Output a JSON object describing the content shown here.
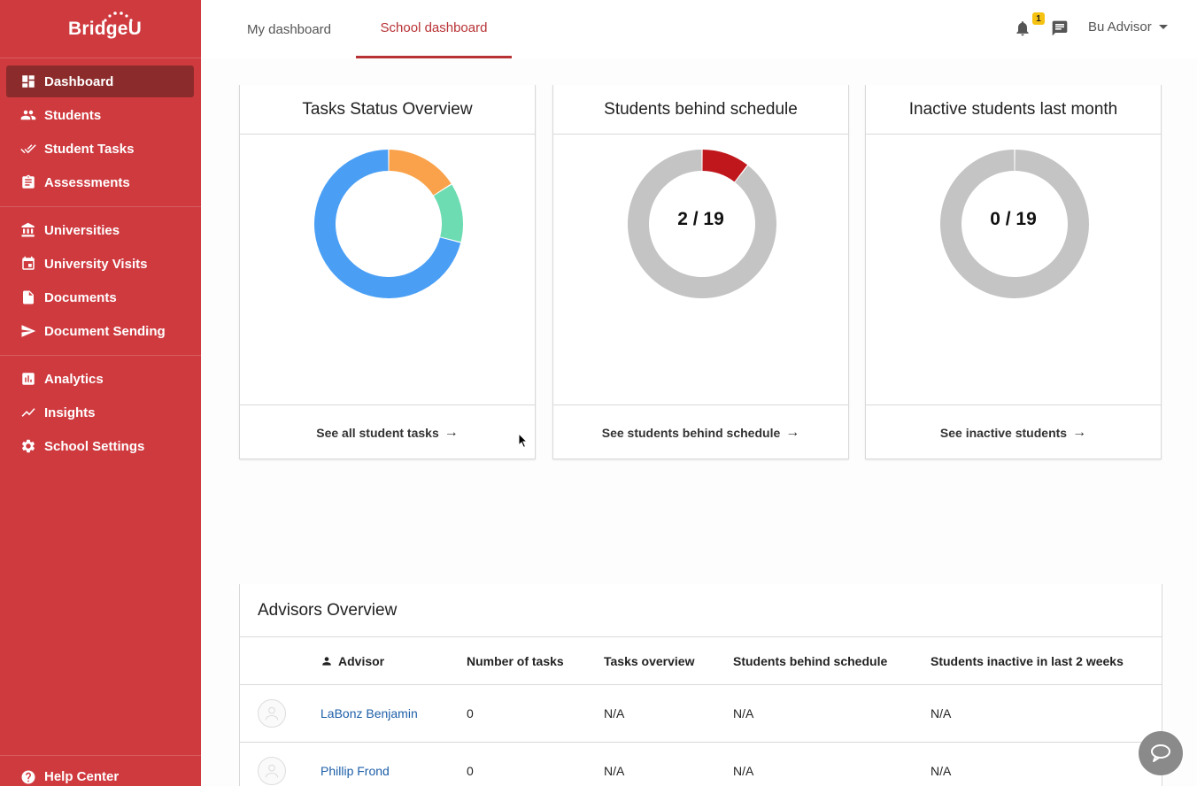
{
  "brand": {
    "name": "BridgeU"
  },
  "sidebar": {
    "groups": [
      [
        {
          "label": "Dashboard",
          "icon": "dashboard-icon",
          "active": true
        },
        {
          "label": "Students",
          "icon": "people-icon"
        },
        {
          "label": "Student Tasks",
          "icon": "double-check-icon"
        },
        {
          "label": "Assessments",
          "icon": "clipboard-icon"
        }
      ],
      [
        {
          "label": "Universities",
          "icon": "university-icon"
        },
        {
          "label": "University Visits",
          "icon": "calendar-icon"
        },
        {
          "label": "Documents",
          "icon": "document-icon"
        },
        {
          "label": "Document Sending",
          "icon": "send-icon"
        }
      ],
      [
        {
          "label": "Analytics",
          "icon": "bar-chart-icon"
        },
        {
          "label": "Insights",
          "icon": "trend-icon"
        },
        {
          "label": "School Settings",
          "icon": "gear-icon"
        }
      ]
    ],
    "help": "Help Center"
  },
  "topbar": {
    "tabs": [
      {
        "label": "My dashboard",
        "active": false
      },
      {
        "label": "School dashboard",
        "active": true
      }
    ],
    "notifications_count": "1",
    "user": "Bu Advisor"
  },
  "cards": [
    {
      "title": "Tasks Status Overview",
      "center_text": "",
      "link": "See all student tasks",
      "segments": [
        {
          "value": 0.16,
          "color": "#f9a24b"
        },
        {
          "value": 0.13,
          "color": "#6ddcb2"
        },
        {
          "value": 0.71,
          "color": "#4a9ff5"
        }
      ]
    },
    {
      "title": "Students behind schedule",
      "center_text": "2 / 19",
      "link": "See students behind schedule",
      "segments": [
        {
          "value": 2,
          "color": "#c0171c"
        },
        {
          "value": 17,
          "color": "#c4c4c4"
        }
      ]
    },
    {
      "title": "Inactive students last month",
      "center_text": "0 / 19",
      "link": "See inactive students",
      "segments": [
        {
          "value": 19,
          "color": "#c4c4c4"
        }
      ]
    }
  ],
  "advisors": {
    "title": "Advisors Overview",
    "columns": {
      "advisor": "Advisor",
      "num_tasks": "Number of tasks",
      "tasks_overview": "Tasks overview",
      "behind": "Students behind schedule",
      "inactive": "Students inactive in last 2 weeks"
    },
    "rows": [
      {
        "name": "LaBonz Benjamin",
        "num_tasks": "0",
        "tasks_overview": "N/A",
        "behind": "N/A",
        "inactive": "N/A"
      },
      {
        "name": "Phillip Frond",
        "num_tasks": "0",
        "tasks_overview": "N/A",
        "behind": "N/A",
        "inactive": "N/A"
      }
    ]
  },
  "colors": {
    "sidebar": "#cf3a3f",
    "active_nav": "#8c2b2b",
    "accent": "#b83235",
    "link": "#1d5fa8"
  }
}
